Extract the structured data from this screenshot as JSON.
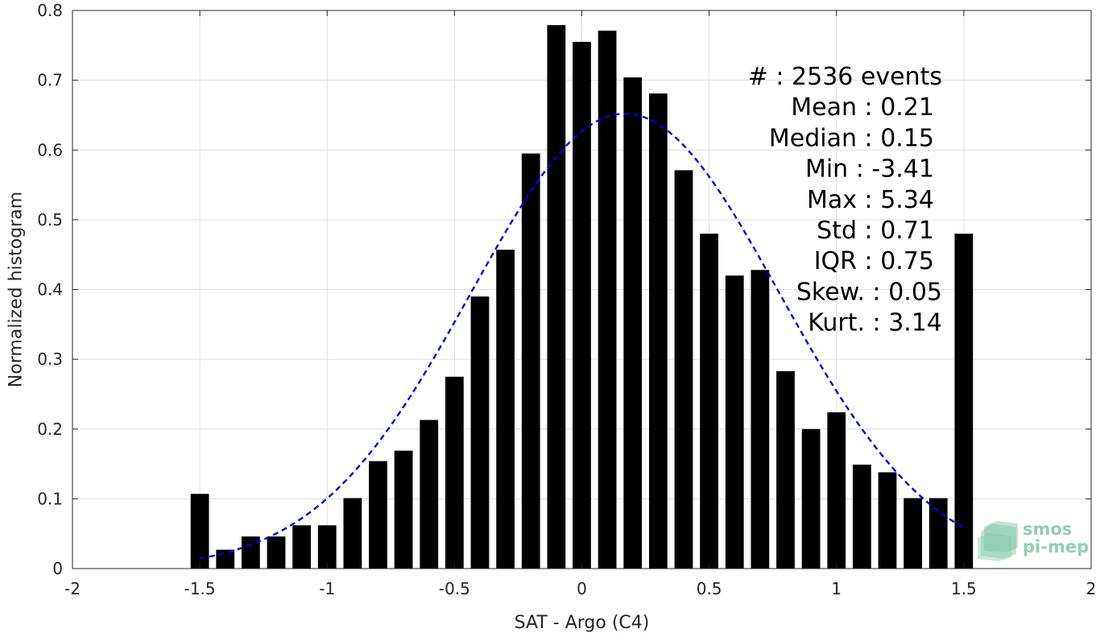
{
  "chart_data": {
    "type": "bar",
    "xlabel": "SAT - Argo (C4)",
    "ylabel": "Normalized histogram",
    "xlim": [
      -2,
      2
    ],
    "ylim": [
      0,
      0.8
    ],
    "grid": true,
    "xticks": [
      -2,
      -1.5,
      -1,
      -0.5,
      0,
      0.5,
      1,
      1.5,
      2
    ],
    "xtick_labels": [
      "-2",
      "-1.5",
      "-1",
      "-0.5",
      "0",
      "0.5",
      "1",
      "1.5",
      "2"
    ],
    "yticks": [
      0,
      0.1,
      0.2,
      0.3,
      0.4,
      0.5,
      0.6,
      0.7,
      0.8
    ],
    "ytick_labels": [
      "0",
      "0.1",
      "0.2",
      "0.3",
      "0.4",
      "0.5",
      "0.6",
      "0.7",
      "0.8"
    ],
    "bar_color": "#000000",
    "bin_width": 0.1,
    "x": [
      -1.5,
      -1.4,
      -1.3,
      -1.2,
      -1.1,
      -1.0,
      -0.9,
      -0.8,
      -0.7,
      -0.6,
      -0.5,
      -0.4,
      -0.3,
      -0.2,
      -0.1,
      0.0,
      0.1,
      0.2,
      0.3,
      0.4,
      0.5,
      0.6,
      0.7,
      0.8,
      0.9,
      1.0,
      1.1,
      1.2,
      1.3,
      1.4,
      1.5
    ],
    "values": [
      0.107,
      0.027,
      0.046,
      0.046,
      0.062,
      0.062,
      0.101,
      0.154,
      0.169,
      0.213,
      0.275,
      0.39,
      0.457,
      0.595,
      0.779,
      0.755,
      0.771,
      0.704,
      0.681,
      0.571,
      0.48,
      0.42,
      0.428,
      0.283,
      0.2,
      0.224,
      0.149,
      0.138,
      0.101,
      0.101,
      0.48
    ],
    "fit_curve": {
      "type": "gaussian",
      "color": "#0000e6",
      "style": "dashed",
      "mean": 0.17,
      "std": 0.605,
      "peak": 0.652,
      "x_range": [
        -1.5,
        1.5
      ]
    },
    "annotations": [
      {
        "label": "#  : ",
        "value": "2536 events"
      },
      {
        "label": "Mean : ",
        "value": "0.21"
      },
      {
        "label": "Median : ",
        "value": "0.15"
      },
      {
        "label": "Min : ",
        "value": "-3.41"
      },
      {
        "label": "Max : ",
        "value": "5.34"
      },
      {
        "label": "Std : ",
        "value": "0.71"
      },
      {
        "label": "IQR : ",
        "value": "0.75"
      },
      {
        "label": "Skew. : ",
        "value": "0.05"
      },
      {
        "label": "Kurt. : ",
        "value": "3.14"
      }
    ]
  },
  "logo": {
    "line1": "smos",
    "line2": "pi-mep",
    "color": "#8fcfb2"
  }
}
